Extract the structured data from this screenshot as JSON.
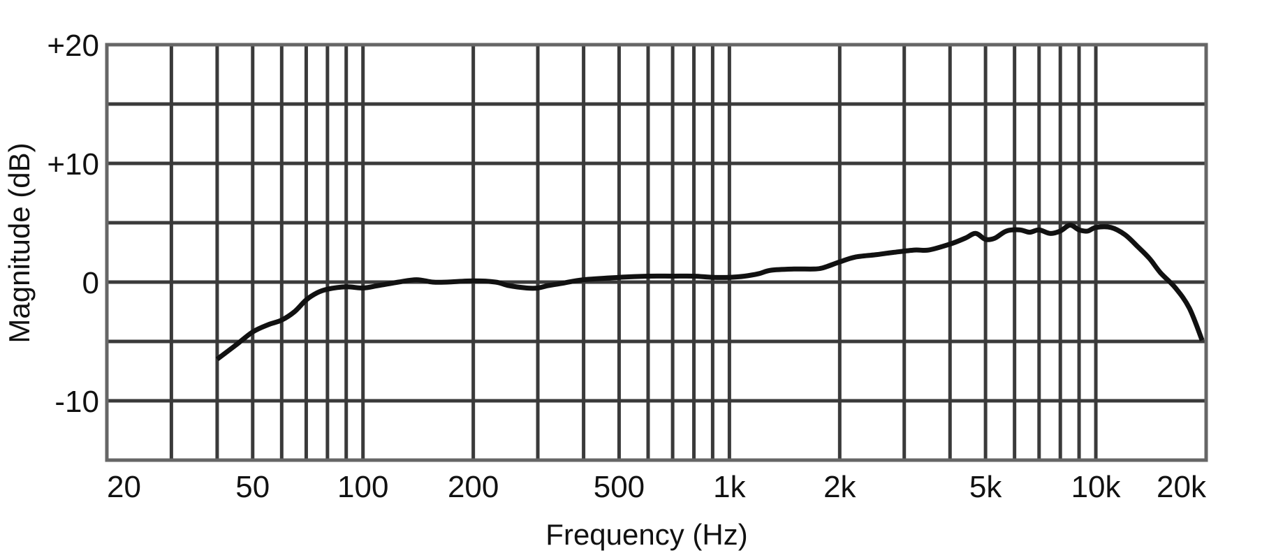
{
  "chart_data": {
    "type": "line",
    "xlabel": "Frequency (Hz)",
    "ylabel": "Magnitude (dB)",
    "x_scale": "log",
    "xlim": [
      20,
      20000
    ],
    "ylim": [
      -15,
      20
    ],
    "grid": true,
    "x_ticks": [
      {
        "value": 20,
        "label": "20"
      },
      {
        "value": 50,
        "label": "50"
      },
      {
        "value": 100,
        "label": "100"
      },
      {
        "value": 200,
        "label": "200"
      },
      {
        "value": 500,
        "label": "500"
      },
      {
        "value": 1000,
        "label": "1k"
      },
      {
        "value": 2000,
        "label": "2k"
      },
      {
        "value": 5000,
        "label": "5k"
      },
      {
        "value": 10000,
        "label": "10k"
      },
      {
        "value": 20000,
        "label": "20k"
      }
    ],
    "y_ticks": [
      {
        "value": 20,
        "label": "+20"
      },
      {
        "value": 10,
        "label": "+10"
      },
      {
        "value": 0,
        "label": "0"
      },
      {
        "value": -10,
        "label": "-10"
      }
    ],
    "x_gridlines": [
      30,
      40,
      50,
      60,
      70,
      80,
      90,
      100,
      200,
      300,
      400,
      500,
      600,
      700,
      800,
      900,
      1000,
      2000,
      3000,
      4000,
      5000,
      6000,
      7000,
      8000,
      9000,
      10000
    ],
    "y_gridlines": [
      15,
      10,
      5,
      0,
      -5,
      -10
    ],
    "colors": {
      "curve": "#111111",
      "grid": "#3a3a3a",
      "frame": "#666666"
    },
    "series": [
      {
        "points": [
          [
            40,
            -6.5
          ],
          [
            45,
            -5.3
          ],
          [
            50,
            -4.2
          ],
          [
            55,
            -3.6
          ],
          [
            60,
            -3.2
          ],
          [
            65,
            -2.5
          ],
          [
            70,
            -1.5
          ],
          [
            75,
            -0.9
          ],
          [
            80,
            -0.6
          ],
          [
            90,
            -0.4
          ],
          [
            100,
            -0.5
          ],
          [
            110,
            -0.3
          ],
          [
            125,
            0.0
          ],
          [
            140,
            0.2
          ],
          [
            155,
            0.0
          ],
          [
            170,
            0.0
          ],
          [
            200,
            0.1
          ],
          [
            230,
            0.0
          ],
          [
            250,
            -0.3
          ],
          [
            280,
            -0.5
          ],
          [
            300,
            -0.5
          ],
          [
            320,
            -0.3
          ],
          [
            350,
            -0.1
          ],
          [
            400,
            0.2
          ],
          [
            500,
            0.4
          ],
          [
            600,
            0.5
          ],
          [
            700,
            0.5
          ],
          [
            800,
            0.5
          ],
          [
            900,
            0.4
          ],
          [
            1000,
            0.4
          ],
          [
            1100,
            0.5
          ],
          [
            1200,
            0.7
          ],
          [
            1300,
            1.0
          ],
          [
            1500,
            1.1
          ],
          [
            1700,
            1.1
          ],
          [
            1800,
            1.2
          ],
          [
            2000,
            1.7
          ],
          [
            2200,
            2.1
          ],
          [
            2500,
            2.3
          ],
          [
            2800,
            2.5
          ],
          [
            3200,
            2.7
          ],
          [
            3500,
            2.7
          ],
          [
            4000,
            3.2
          ],
          [
            4400,
            3.7
          ],
          [
            4700,
            4.1
          ],
          [
            5000,
            3.6
          ],
          [
            5300,
            3.7
          ],
          [
            5700,
            4.3
          ],
          [
            6200,
            4.4
          ],
          [
            6600,
            4.2
          ],
          [
            7000,
            4.4
          ],
          [
            7500,
            4.1
          ],
          [
            8000,
            4.3
          ],
          [
            8500,
            4.8
          ],
          [
            9000,
            4.4
          ],
          [
            9500,
            4.3
          ],
          [
            10000,
            4.6
          ],
          [
            11000,
            4.6
          ],
          [
            12000,
            4.0
          ],
          [
            13000,
            3.0
          ],
          [
            14000,
            2.0
          ],
          [
            15000,
            0.8
          ],
          [
            16500,
            -0.5
          ],
          [
            18000,
            -2.2
          ],
          [
            19500,
            -4.9
          ]
        ]
      }
    ]
  }
}
